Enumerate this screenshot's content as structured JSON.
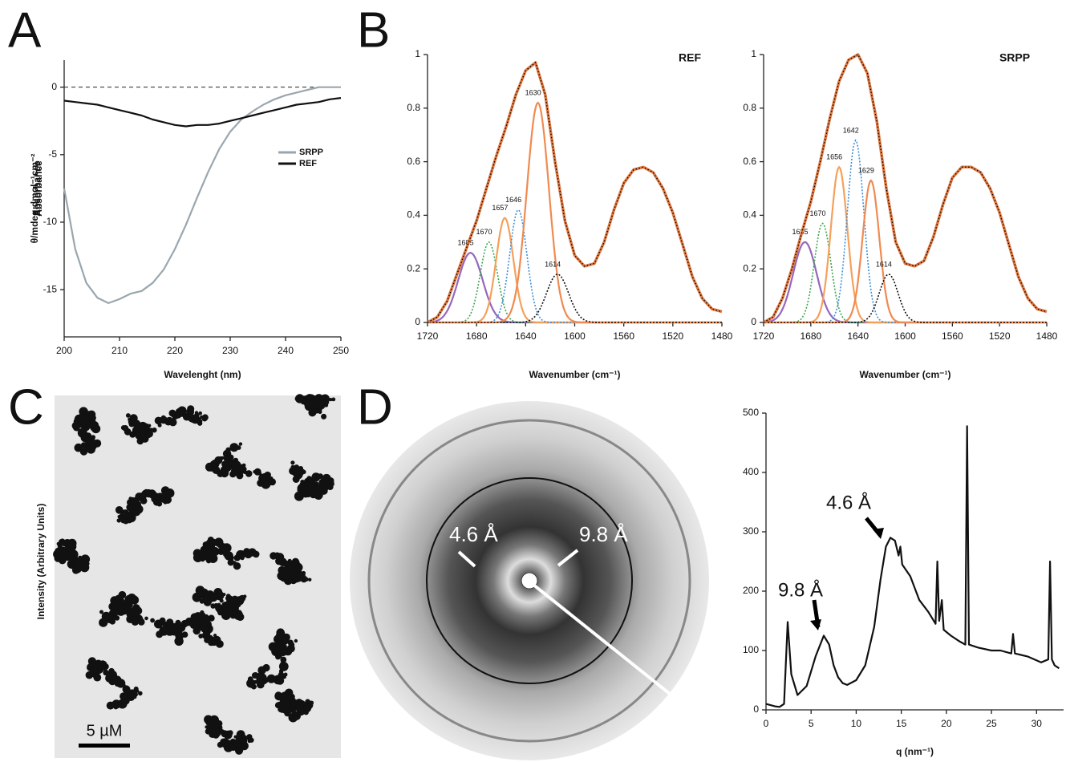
{
  "panel_labels": [
    "A",
    "B",
    "C",
    "D"
  ],
  "micrograph": {
    "scale_bar": "5 µM"
  },
  "diffraction": {
    "annotations": [
      "4.6 Å",
      "9.8 Å"
    ]
  },
  "chart_data": [
    {
      "type": "line",
      "x_label": "Wavelenght (nm)",
      "y_label": "θ/mdeg.dmol⁻¹cm⁻²",
      "xlim": [
        200,
        250
      ],
      "xticks": [
        200,
        210,
        220,
        230,
        240,
        250
      ],
      "ylim": [
        -18.5,
        2
      ],
      "yticks": [
        0,
        -5,
        -10,
        -15
      ],
      "zero_line": true,
      "legend": "right",
      "x": [
        200,
        202,
        204,
        206,
        208,
        210,
        212,
        214,
        216,
        218,
        220,
        222,
        224,
        226,
        228,
        230,
        232,
        234,
        236,
        238,
        240,
        242,
        244,
        246,
        248,
        250
      ],
      "series": [
        {
          "name": "SRPP",
          "color": "#9aa6ae",
          "values": [
            -7.5,
            -12,
            -14.5,
            -15.6,
            -16,
            -15.7,
            -15.3,
            -15.1,
            -14.5,
            -13.5,
            -12,
            -10.2,
            -8.2,
            -6.3,
            -4.6,
            -3.3,
            -2.4,
            -1.8,
            -1.3,
            -0.9,
            -0.6,
            -0.4,
            -0.2,
            0,
            0,
            0
          ]
        },
        {
          "name": "REF",
          "color": "#111111",
          "values": [
            -1,
            -1.1,
            -1.2,
            -1.3,
            -1.5,
            -1.7,
            -1.9,
            -2.1,
            -2.4,
            -2.6,
            -2.8,
            -2.9,
            -2.8,
            -2.8,
            -2.7,
            -2.5,
            -2.3,
            -2.1,
            -1.9,
            -1.7,
            -1.5,
            -1.3,
            -1.2,
            -1.1,
            -0.9,
            -0.8
          ]
        }
      ]
    },
    {
      "type": "line",
      "title": "REF",
      "x_label": "Wavenumber (cm⁻¹)",
      "y_label": "Absorbance",
      "xlim": [
        1720,
        1480
      ],
      "xticks": [
        1720,
        1680,
        1640,
        1600,
        1560,
        1520,
        1480
      ],
      "ylim": [
        0,
        1
      ],
      "yticks": [
        0,
        0.2,
        0.4,
        0.6,
        0.8,
        1
      ],
      "x": [
        1720,
        1712,
        1704,
        1696,
        1688,
        1680,
        1672,
        1664,
        1656,
        1648,
        1640,
        1632,
        1624,
        1616,
        1608,
        1600,
        1592,
        1584,
        1576,
        1568,
        1560,
        1552,
        1544,
        1536,
        1528,
        1520,
        1512,
        1504,
        1496,
        1488,
        1480
      ],
      "series": [
        {
          "color": "#e0773f",
          "values": [
            0,
            0.02,
            0.08,
            0.18,
            0.28,
            0.38,
            0.5,
            0.62,
            0.73,
            0.85,
            0.94,
            0.97,
            0.85,
            0.6,
            0.38,
            0.25,
            0.21,
            0.22,
            0.3,
            0.42,
            0.52,
            0.57,
            0.58,
            0.56,
            0.5,
            0.41,
            0.29,
            0.17,
            0.09,
            0.05,
            0.04
          ]
        }
      ],
      "peaks": [
        {
          "value": 1685,
          "height": 0.26,
          "width": 10,
          "color": "#9467bd",
          "style": "solid"
        },
        {
          "value": 1670,
          "height": 0.3,
          "width": 7,
          "color": "#3aa64a",
          "style": "dotted"
        },
        {
          "value": 1657,
          "height": 0.39,
          "width": 7,
          "color": "#f5a05a",
          "style": "solid"
        },
        {
          "value": 1646,
          "height": 0.42,
          "width": 7,
          "color": "#3a8fd9",
          "style": "dotted"
        },
        {
          "value": 1630,
          "height": 0.82,
          "width": 9,
          "color": "#f08a50",
          "style": "solid"
        },
        {
          "value": 1614,
          "height": 0.18,
          "width": 9,
          "color": "#111111",
          "style": "dotted"
        }
      ]
    },
    {
      "type": "line",
      "title": "SRPP",
      "x_label": "Wavenumber (cm⁻¹)",
      "y_label": "Absorbance",
      "xlim": [
        1720,
        1480
      ],
      "xticks": [
        1720,
        1680,
        1640,
        1600,
        1560,
        1520,
        1480
      ],
      "ylim": [
        0,
        1
      ],
      "yticks": [
        0,
        0.2,
        0.4,
        0.6,
        0.8,
        1
      ],
      "x": [
        1720,
        1712,
        1704,
        1696,
        1688,
        1680,
        1672,
        1664,
        1656,
        1648,
        1640,
        1632,
        1624,
        1616,
        1608,
        1600,
        1592,
        1584,
        1576,
        1568,
        1560,
        1552,
        1544,
        1536,
        1528,
        1520,
        1512,
        1504,
        1496,
        1488,
        1480
      ],
      "series": [
        {
          "color": "#e0773f",
          "values": [
            0,
            0.02,
            0.09,
            0.2,
            0.33,
            0.45,
            0.6,
            0.76,
            0.9,
            0.98,
            1,
            0.93,
            0.75,
            0.5,
            0.3,
            0.22,
            0.21,
            0.23,
            0.32,
            0.44,
            0.54,
            0.58,
            0.58,
            0.56,
            0.5,
            0.41,
            0.29,
            0.17,
            0.09,
            0.05,
            0.04
          ]
        }
      ],
      "peaks": [
        {
          "value": 1685,
          "height": 0.3,
          "width": 10,
          "color": "#9467bd",
          "style": "solid"
        },
        {
          "value": 1670,
          "height": 0.37,
          "width": 7,
          "color": "#3aa64a",
          "style": "dotted"
        },
        {
          "value": 1656,
          "height": 0.58,
          "width": 7,
          "color": "#f5a05a",
          "style": "solid"
        },
        {
          "value": 1642,
          "height": 0.68,
          "width": 7,
          "color": "#3a8fd9",
          "style": "dotted"
        },
        {
          "value": 1629,
          "height": 0.53,
          "width": 7,
          "color": "#f08a50",
          "style": "solid"
        },
        {
          "value": 1614,
          "height": 0.18,
          "width": 8,
          "color": "#111111",
          "style": "dotted"
        }
      ]
    },
    {
      "type": "line",
      "x_label": "q (nm⁻¹)",
      "y_label": "Intensity (Arbitrary Units)",
      "xlim": [
        0,
        33
      ],
      "xticks": [
        0,
        5,
        10,
        15,
        20,
        25,
        30
      ],
      "ylim": [
        0,
        500
      ],
      "yticks": [
        0,
        100,
        200,
        300,
        400,
        500
      ],
      "x": [
        0,
        0.5,
        1,
        1.5,
        2,
        2.4,
        2.8,
        3.5,
        4.5,
        5.5,
        6.4,
        7,
        7.5,
        8,
        8.5,
        9,
        10,
        11,
        12,
        12.7,
        13.3,
        13.8,
        14.3,
        14.7,
        14.9,
        15.1,
        16,
        17,
        18,
        18.8,
        19,
        19.2,
        19.5,
        19.7,
        20.5,
        21.5,
        22.1,
        22.3,
        22.5,
        23.5,
        25,
        26,
        27.2,
        27.4,
        27.6,
        29,
        30.5,
        31.3,
        31.5,
        31.7,
        32,
        32.5
      ],
      "series": [
        {
          "color": "#111111",
          "values": [
            10,
            8,
            6,
            5,
            10,
            148,
            60,
            25,
            40,
            90,
            125,
            110,
            75,
            55,
            45,
            42,
            50,
            75,
            140,
            220,
            275,
            290,
            285,
            260,
            275,
            245,
            225,
            185,
            165,
            145,
            250,
            150,
            185,
            135,
            125,
            115,
            110,
            478,
            110,
            105,
            100,
            100,
            95,
            128,
            95,
            90,
            80,
            85,
            250,
            85,
            75,
            70
          ]
        }
      ],
      "annotations": [
        "9.8 Å",
        "4.6 Å"
      ]
    }
  ]
}
